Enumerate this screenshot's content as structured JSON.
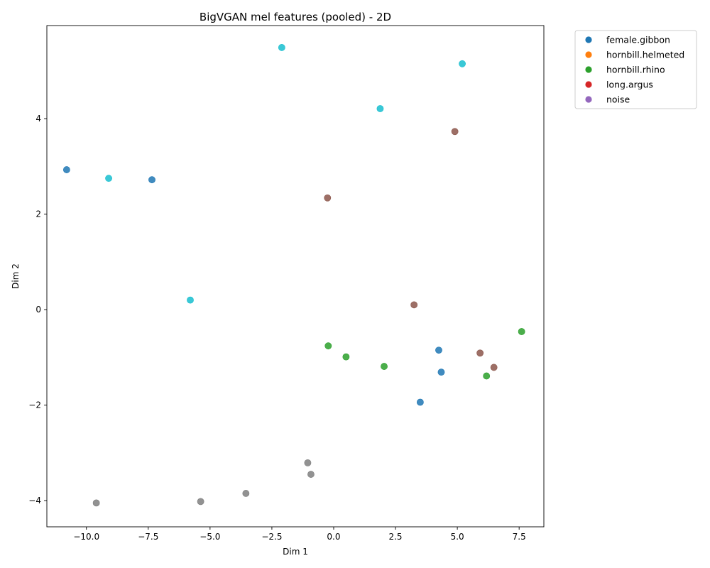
{
  "chart_data": {
    "type": "scatter",
    "title": "BigVGAN mel features (pooled) - 2D",
    "xlabel": "Dim 1",
    "ylabel": "Dim 2",
    "xlim": [
      -11.6,
      8.5
    ],
    "ylim": [
      -4.55,
      5.95
    ],
    "xticks": [
      -10.0,
      -7.5,
      -5.0,
      -2.5,
      0.0,
      2.5,
      5.0,
      7.5
    ],
    "xtick_labels": [
      "−10.0",
      "−7.5",
      "−5.0",
      "−2.5",
      "0.0",
      "2.5",
      "5.0",
      "7.5"
    ],
    "yticks": [
      -4,
      -2,
      0,
      2,
      4
    ],
    "ytick_labels": [
      "−4",
      "−2",
      "0",
      "2",
      "4"
    ],
    "grid": false,
    "legend_position": "outside-top-right",
    "legend": [
      {
        "name": "female.gibbon",
        "color": "#1f77b4"
      },
      {
        "name": "hornbill.helmeted",
        "color": "#ff7f0e"
      },
      {
        "name": "hornbill.rhino",
        "color": "#2ca02c"
      },
      {
        "name": "long.argus",
        "color": "#d62728"
      },
      {
        "name": "noise",
        "color": "#9467bd"
      }
    ],
    "points": [
      {
        "x": -10.8,
        "y": 2.93,
        "color": "#1f77b4"
      },
      {
        "x": -7.35,
        "y": 2.72,
        "color": "#1f77b4"
      },
      {
        "x": 4.25,
        "y": -0.85,
        "color": "#1f77b4"
      },
      {
        "x": 4.35,
        "y": -1.31,
        "color": "#1f77b4"
      },
      {
        "x": 3.5,
        "y": -1.94,
        "color": "#1f77b4"
      },
      {
        "x": -2.1,
        "y": 5.49,
        "color": "#17becf"
      },
      {
        "x": 5.2,
        "y": 5.15,
        "color": "#17becf"
      },
      {
        "x": 1.88,
        "y": 4.21,
        "color": "#17becf"
      },
      {
        "x": -9.1,
        "y": 2.75,
        "color": "#17becf"
      },
      {
        "x": -5.8,
        "y": 0.2,
        "color": "#17becf"
      },
      {
        "x": 4.9,
        "y": 3.73,
        "color": "#8c564b"
      },
      {
        "x": -0.25,
        "y": 2.34,
        "color": "#8c564b"
      },
      {
        "x": 3.25,
        "y": 0.1,
        "color": "#8c564b"
      },
      {
        "x": 5.92,
        "y": -0.91,
        "color": "#8c564b"
      },
      {
        "x": 6.48,
        "y": -1.21,
        "color": "#8c564b"
      },
      {
        "x": -0.22,
        "y": -0.76,
        "color": "#2ca02c"
      },
      {
        "x": 0.5,
        "y": -0.99,
        "color": "#2ca02c"
      },
      {
        "x": 2.04,
        "y": -1.19,
        "color": "#2ca02c"
      },
      {
        "x": 6.18,
        "y": -1.39,
        "color": "#2ca02c"
      },
      {
        "x": 7.6,
        "y": -0.46,
        "color": "#2ca02c"
      },
      {
        "x": -1.05,
        "y": -3.21,
        "color": "#7f7f7f"
      },
      {
        "x": -0.92,
        "y": -3.45,
        "color": "#7f7f7f"
      },
      {
        "x": -3.55,
        "y": -3.85,
        "color": "#7f7f7f"
      },
      {
        "x": -5.38,
        "y": -4.02,
        "color": "#7f7f7f"
      },
      {
        "x": -9.6,
        "y": -4.05,
        "color": "#7f7f7f"
      }
    ]
  }
}
